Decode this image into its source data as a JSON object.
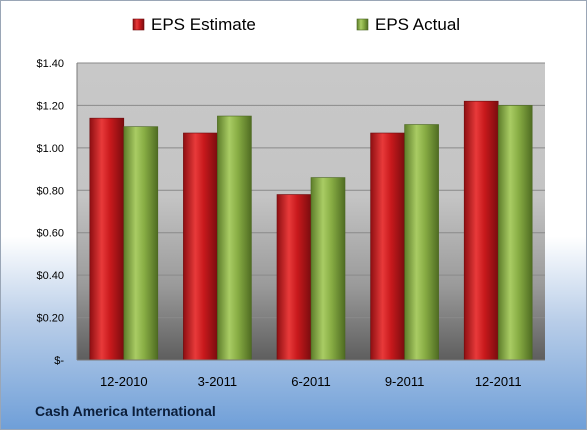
{
  "company_name": "Cash America International",
  "chart_data": {
    "type": "bar",
    "categories": [
      "12-2010",
      "3-2011",
      "6-2011",
      "9-2011",
      "12-2011"
    ],
    "series": [
      {
        "name": "EPS Estimate",
        "values": [
          1.14,
          1.07,
          0.78,
          1.07,
          1.22
        ],
        "color": "#c0181c"
      },
      {
        "name": "EPS Actual",
        "values": [
          1.1,
          1.15,
          0.86,
          1.11,
          1.2
        ],
        "color": "#8fb54a"
      }
    ],
    "title": "",
    "xlabel": "",
    "ylabel": "",
    "ylim": [
      0,
      1.4
    ],
    "ytick_values": [
      0,
      0.2,
      0.4,
      0.6,
      0.8,
      1.0,
      1.2,
      1.4
    ],
    "ytick_labels": [
      "$-",
      "$0.20",
      "$0.40",
      "$0.60",
      "$0.80",
      "$1.00",
      "$1.20",
      "$1.40"
    ],
    "grid": true,
    "legend_position": "top"
  }
}
